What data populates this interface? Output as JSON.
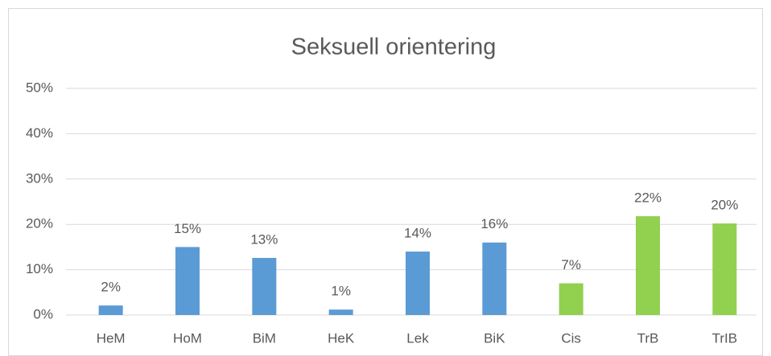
{
  "chart_data": {
    "type": "bar",
    "title": "Seksuell orientering",
    "categories": [
      "HeM",
      "HoM",
      "BiM",
      "HeK",
      "Lek",
      "BiK",
      "Cis",
      "TrB",
      "TrIB"
    ],
    "values": [
      2.1,
      15,
      12.6,
      1.2,
      14,
      16,
      7,
      21.8,
      20.2
    ],
    "value_labels": [
      "2%",
      "15%",
      "13%",
      "1%",
      "14%",
      "16%",
      "7%",
      "22%",
      "20%"
    ],
    "colors": [
      "#5b9bd5",
      "#5b9bd5",
      "#5b9bd5",
      "#5b9bd5",
      "#5b9bd5",
      "#5b9bd5",
      "#92d050",
      "#92d050",
      "#92d050"
    ],
    "ylim": [
      0,
      50
    ],
    "yticks": [
      {
        "value": 0,
        "label": "0%"
      },
      {
        "value": 10,
        "label": "10%"
      },
      {
        "value": 20,
        "label": "20%"
      },
      {
        "value": 30,
        "label": "30%"
      },
      {
        "value": 40,
        "label": "40%"
      },
      {
        "value": 50,
        "label": "50%"
      }
    ],
    "grid": true
  }
}
